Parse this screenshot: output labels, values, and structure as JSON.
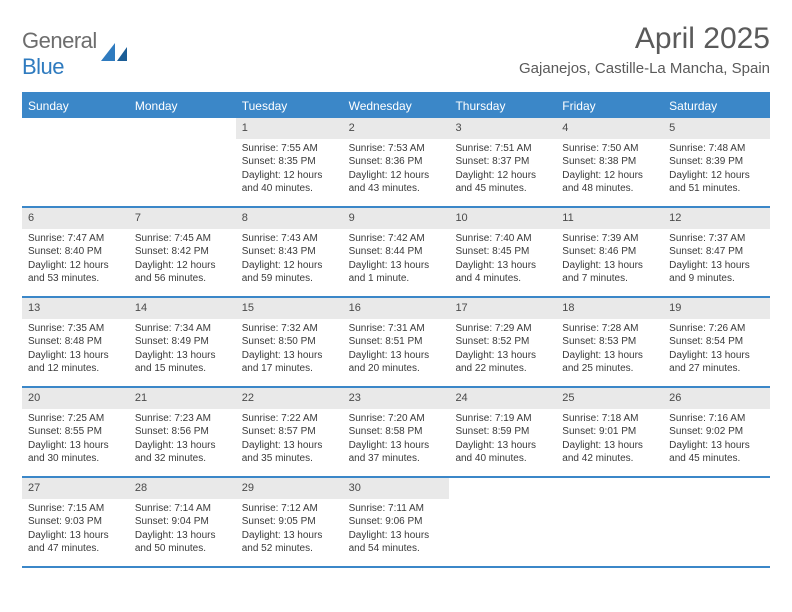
{
  "logo": {
    "text_general": "General",
    "text_blue": "Blue",
    "color_general": "#6d6d6d",
    "color_blue": "#2f7bbf",
    "fontsize": 22
  },
  "title": {
    "month": "April 2025",
    "location": "Gajanejos, Castille-La Mancha, Spain",
    "month_fontsize": 30,
    "location_fontsize": 15,
    "title_color": "#5a5a5a"
  },
  "calendar": {
    "type": "table",
    "accent_color": "#3b87c8",
    "daynum_bg": "#e9e9e9",
    "text_color": "#3a3a3a",
    "body_fontsize": 10,
    "header_fontsize": 12,
    "daynum_fontsize": 11,
    "columns": 7,
    "dow": [
      "Sunday",
      "Monday",
      "Tuesday",
      "Wednesday",
      "Thursday",
      "Friday",
      "Saturday"
    ],
    "weeks": [
      [
        null,
        null,
        {
          "n": "1",
          "sr": "Sunrise: 7:55 AM",
          "ss": "Sunset: 8:35 PM",
          "dl": "Daylight: 12 hours and 40 minutes."
        },
        {
          "n": "2",
          "sr": "Sunrise: 7:53 AM",
          "ss": "Sunset: 8:36 PM",
          "dl": "Daylight: 12 hours and 43 minutes."
        },
        {
          "n": "3",
          "sr": "Sunrise: 7:51 AM",
          "ss": "Sunset: 8:37 PM",
          "dl": "Daylight: 12 hours and 45 minutes."
        },
        {
          "n": "4",
          "sr": "Sunrise: 7:50 AM",
          "ss": "Sunset: 8:38 PM",
          "dl": "Daylight: 12 hours and 48 minutes."
        },
        {
          "n": "5",
          "sr": "Sunrise: 7:48 AM",
          "ss": "Sunset: 8:39 PM",
          "dl": "Daylight: 12 hours and 51 minutes."
        }
      ],
      [
        {
          "n": "6",
          "sr": "Sunrise: 7:47 AM",
          "ss": "Sunset: 8:40 PM",
          "dl": "Daylight: 12 hours and 53 minutes."
        },
        {
          "n": "7",
          "sr": "Sunrise: 7:45 AM",
          "ss": "Sunset: 8:42 PM",
          "dl": "Daylight: 12 hours and 56 minutes."
        },
        {
          "n": "8",
          "sr": "Sunrise: 7:43 AM",
          "ss": "Sunset: 8:43 PM",
          "dl": "Daylight: 12 hours and 59 minutes."
        },
        {
          "n": "9",
          "sr": "Sunrise: 7:42 AM",
          "ss": "Sunset: 8:44 PM",
          "dl": "Daylight: 13 hours and 1 minute."
        },
        {
          "n": "10",
          "sr": "Sunrise: 7:40 AM",
          "ss": "Sunset: 8:45 PM",
          "dl": "Daylight: 13 hours and 4 minutes."
        },
        {
          "n": "11",
          "sr": "Sunrise: 7:39 AM",
          "ss": "Sunset: 8:46 PM",
          "dl": "Daylight: 13 hours and 7 minutes."
        },
        {
          "n": "12",
          "sr": "Sunrise: 7:37 AM",
          "ss": "Sunset: 8:47 PM",
          "dl": "Daylight: 13 hours and 9 minutes."
        }
      ],
      [
        {
          "n": "13",
          "sr": "Sunrise: 7:35 AM",
          "ss": "Sunset: 8:48 PM",
          "dl": "Daylight: 13 hours and 12 minutes."
        },
        {
          "n": "14",
          "sr": "Sunrise: 7:34 AM",
          "ss": "Sunset: 8:49 PM",
          "dl": "Daylight: 13 hours and 15 minutes."
        },
        {
          "n": "15",
          "sr": "Sunrise: 7:32 AM",
          "ss": "Sunset: 8:50 PM",
          "dl": "Daylight: 13 hours and 17 minutes."
        },
        {
          "n": "16",
          "sr": "Sunrise: 7:31 AM",
          "ss": "Sunset: 8:51 PM",
          "dl": "Daylight: 13 hours and 20 minutes."
        },
        {
          "n": "17",
          "sr": "Sunrise: 7:29 AM",
          "ss": "Sunset: 8:52 PM",
          "dl": "Daylight: 13 hours and 22 minutes."
        },
        {
          "n": "18",
          "sr": "Sunrise: 7:28 AM",
          "ss": "Sunset: 8:53 PM",
          "dl": "Daylight: 13 hours and 25 minutes."
        },
        {
          "n": "19",
          "sr": "Sunrise: 7:26 AM",
          "ss": "Sunset: 8:54 PM",
          "dl": "Daylight: 13 hours and 27 minutes."
        }
      ],
      [
        {
          "n": "20",
          "sr": "Sunrise: 7:25 AM",
          "ss": "Sunset: 8:55 PM",
          "dl": "Daylight: 13 hours and 30 minutes."
        },
        {
          "n": "21",
          "sr": "Sunrise: 7:23 AM",
          "ss": "Sunset: 8:56 PM",
          "dl": "Daylight: 13 hours and 32 minutes."
        },
        {
          "n": "22",
          "sr": "Sunrise: 7:22 AM",
          "ss": "Sunset: 8:57 PM",
          "dl": "Daylight: 13 hours and 35 minutes."
        },
        {
          "n": "23",
          "sr": "Sunrise: 7:20 AM",
          "ss": "Sunset: 8:58 PM",
          "dl": "Daylight: 13 hours and 37 minutes."
        },
        {
          "n": "24",
          "sr": "Sunrise: 7:19 AM",
          "ss": "Sunset: 8:59 PM",
          "dl": "Daylight: 13 hours and 40 minutes."
        },
        {
          "n": "25",
          "sr": "Sunrise: 7:18 AM",
          "ss": "Sunset: 9:01 PM",
          "dl": "Daylight: 13 hours and 42 minutes."
        },
        {
          "n": "26",
          "sr": "Sunrise: 7:16 AM",
          "ss": "Sunset: 9:02 PM",
          "dl": "Daylight: 13 hours and 45 minutes."
        }
      ],
      [
        {
          "n": "27",
          "sr": "Sunrise: 7:15 AM",
          "ss": "Sunset: 9:03 PM",
          "dl": "Daylight: 13 hours and 47 minutes."
        },
        {
          "n": "28",
          "sr": "Sunrise: 7:14 AM",
          "ss": "Sunset: 9:04 PM",
          "dl": "Daylight: 13 hours and 50 minutes."
        },
        {
          "n": "29",
          "sr": "Sunrise: 7:12 AM",
          "ss": "Sunset: 9:05 PM",
          "dl": "Daylight: 13 hours and 52 minutes."
        },
        {
          "n": "30",
          "sr": "Sunrise: 7:11 AM",
          "ss": "Sunset: 9:06 PM",
          "dl": "Daylight: 13 hours and 54 minutes."
        },
        null,
        null,
        null
      ]
    ]
  }
}
